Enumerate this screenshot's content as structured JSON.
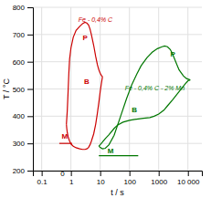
{
  "chart_data": {
    "type": "line",
    "xlabel": "t / s",
    "ylabel": "T / °C",
    "log": "x",
    "grid": true,
    "xlim": [
      0.05,
      30000
    ],
    "xticks": [
      0.1,
      1,
      10,
      100,
      1000,
      {
        "value": 10000,
        "label": "10 000"
      }
    ],
    "ylim": [
      200,
      800
    ],
    "yticks": [
      200,
      300,
      400,
      500,
      600,
      700,
      800
    ],
    "series": [
      {
        "color": "#cc0000",
        "x": [
          0.7,
          0.75,
          0.8,
          0.85,
          0.9,
          1.0,
          1.2,
          1.5,
          2.0,
          2.5,
          3.0,
          3.5,
          4.0,
          4.5,
          5.0,
          6.0,
          7.0,
          8.0,
          9.0,
          10.0,
          11.0,
          12.0
        ],
        "values": [
          370,
          420,
          490,
          560,
          610,
          650,
          690,
          715,
          730,
          740,
          745,
          742,
          735,
          720,
          700,
          660,
          620,
          590,
          570,
          558,
          550,
          545
        ]
      },
      {
        "color": "#cc0000",
        "x": [
          0.7,
          0.72,
          0.75,
          0.8,
          0.9,
          1.0,
          1.2,
          1.5,
          2.0,
          2.5,
          3.0,
          3.5,
          4.0,
          4.5,
          5.0,
          6.0,
          7.0,
          8.0,
          9.0,
          10.0,
          11.0,
          12.0
        ],
        "values": [
          370,
          355,
          340,
          325,
          308,
          298,
          290,
          284,
          280,
          278,
          278,
          280,
          285,
          295,
          308,
          335,
          370,
          410,
          450,
          490,
          520,
          545
        ]
      },
      {
        "color": "#cc0000",
        "x": [
          0.4,
          1.1
        ],
        "values": [
          300,
          300
        ]
      },
      {
        "color": "#007700",
        "x": [
          9.0,
          10,
          12,
          15,
          20,
          30,
          50,
          80,
          120,
          180,
          250,
          400,
          600,
          900,
          1300,
          1600,
          2000,
          2500,
          3000,
          4000,
          5000,
          7000,
          9000,
          12000
        ],
        "values": [
          290,
          285,
          280,
          282,
          295,
          330,
          400,
          465,
          515,
          555,
          585,
          615,
          635,
          648,
          655,
          658,
          655,
          645,
          628,
          595,
          570,
          548,
          538,
          533
        ]
      },
      {
        "color": "#007700",
        "x": [
          9.0,
          10,
          12,
          15,
          20,
          30,
          40,
          60,
          100,
          150,
          200,
          300,
          500,
          700,
          1000,
          1500,
          2000,
          3000,
          5000,
          8000,
          10000,
          12000
        ],
        "values": [
          290,
          295,
          305,
          318,
          332,
          355,
          368,
          378,
          385,
          388,
          390,
          392,
          395,
          400,
          408,
          422,
          438,
          460,
          490,
          518,
          530,
          533
        ]
      },
      {
        "color": "#007700",
        "x": [
          9,
          200
        ],
        "values": [
          255,
          255
        ]
      }
    ],
    "annotations": [
      {
        "text": "Fe - 0,4% C",
        "x": 1.8,
        "y": 748,
        "color": "#cc0000"
      },
      {
        "text": "P",
        "x": 2.5,
        "y": 678,
        "color": "#cc0000"
      },
      {
        "text": "B",
        "x": 2.8,
        "y": 520,
        "color": "#cc0000"
      },
      {
        "text": "M",
        "x": 0.48,
        "y": 318,
        "color": "#cc0000"
      },
      {
        "text": "Fe - 0,4% C - 2% Mn",
        "x": 70,
        "y": 495,
        "color": "#007700"
      },
      {
        "text": "P",
        "x": 2500,
        "y": 618,
        "color": "#007700"
      },
      {
        "text": "B",
        "x": 120,
        "y": 415,
        "color": "#007700"
      },
      {
        "text": "M",
        "x": 18,
        "y": 265,
        "color": "#007700"
      },
      {
        "text": "0",
        "x": 0.52,
        "y": 197
      }
    ]
  }
}
